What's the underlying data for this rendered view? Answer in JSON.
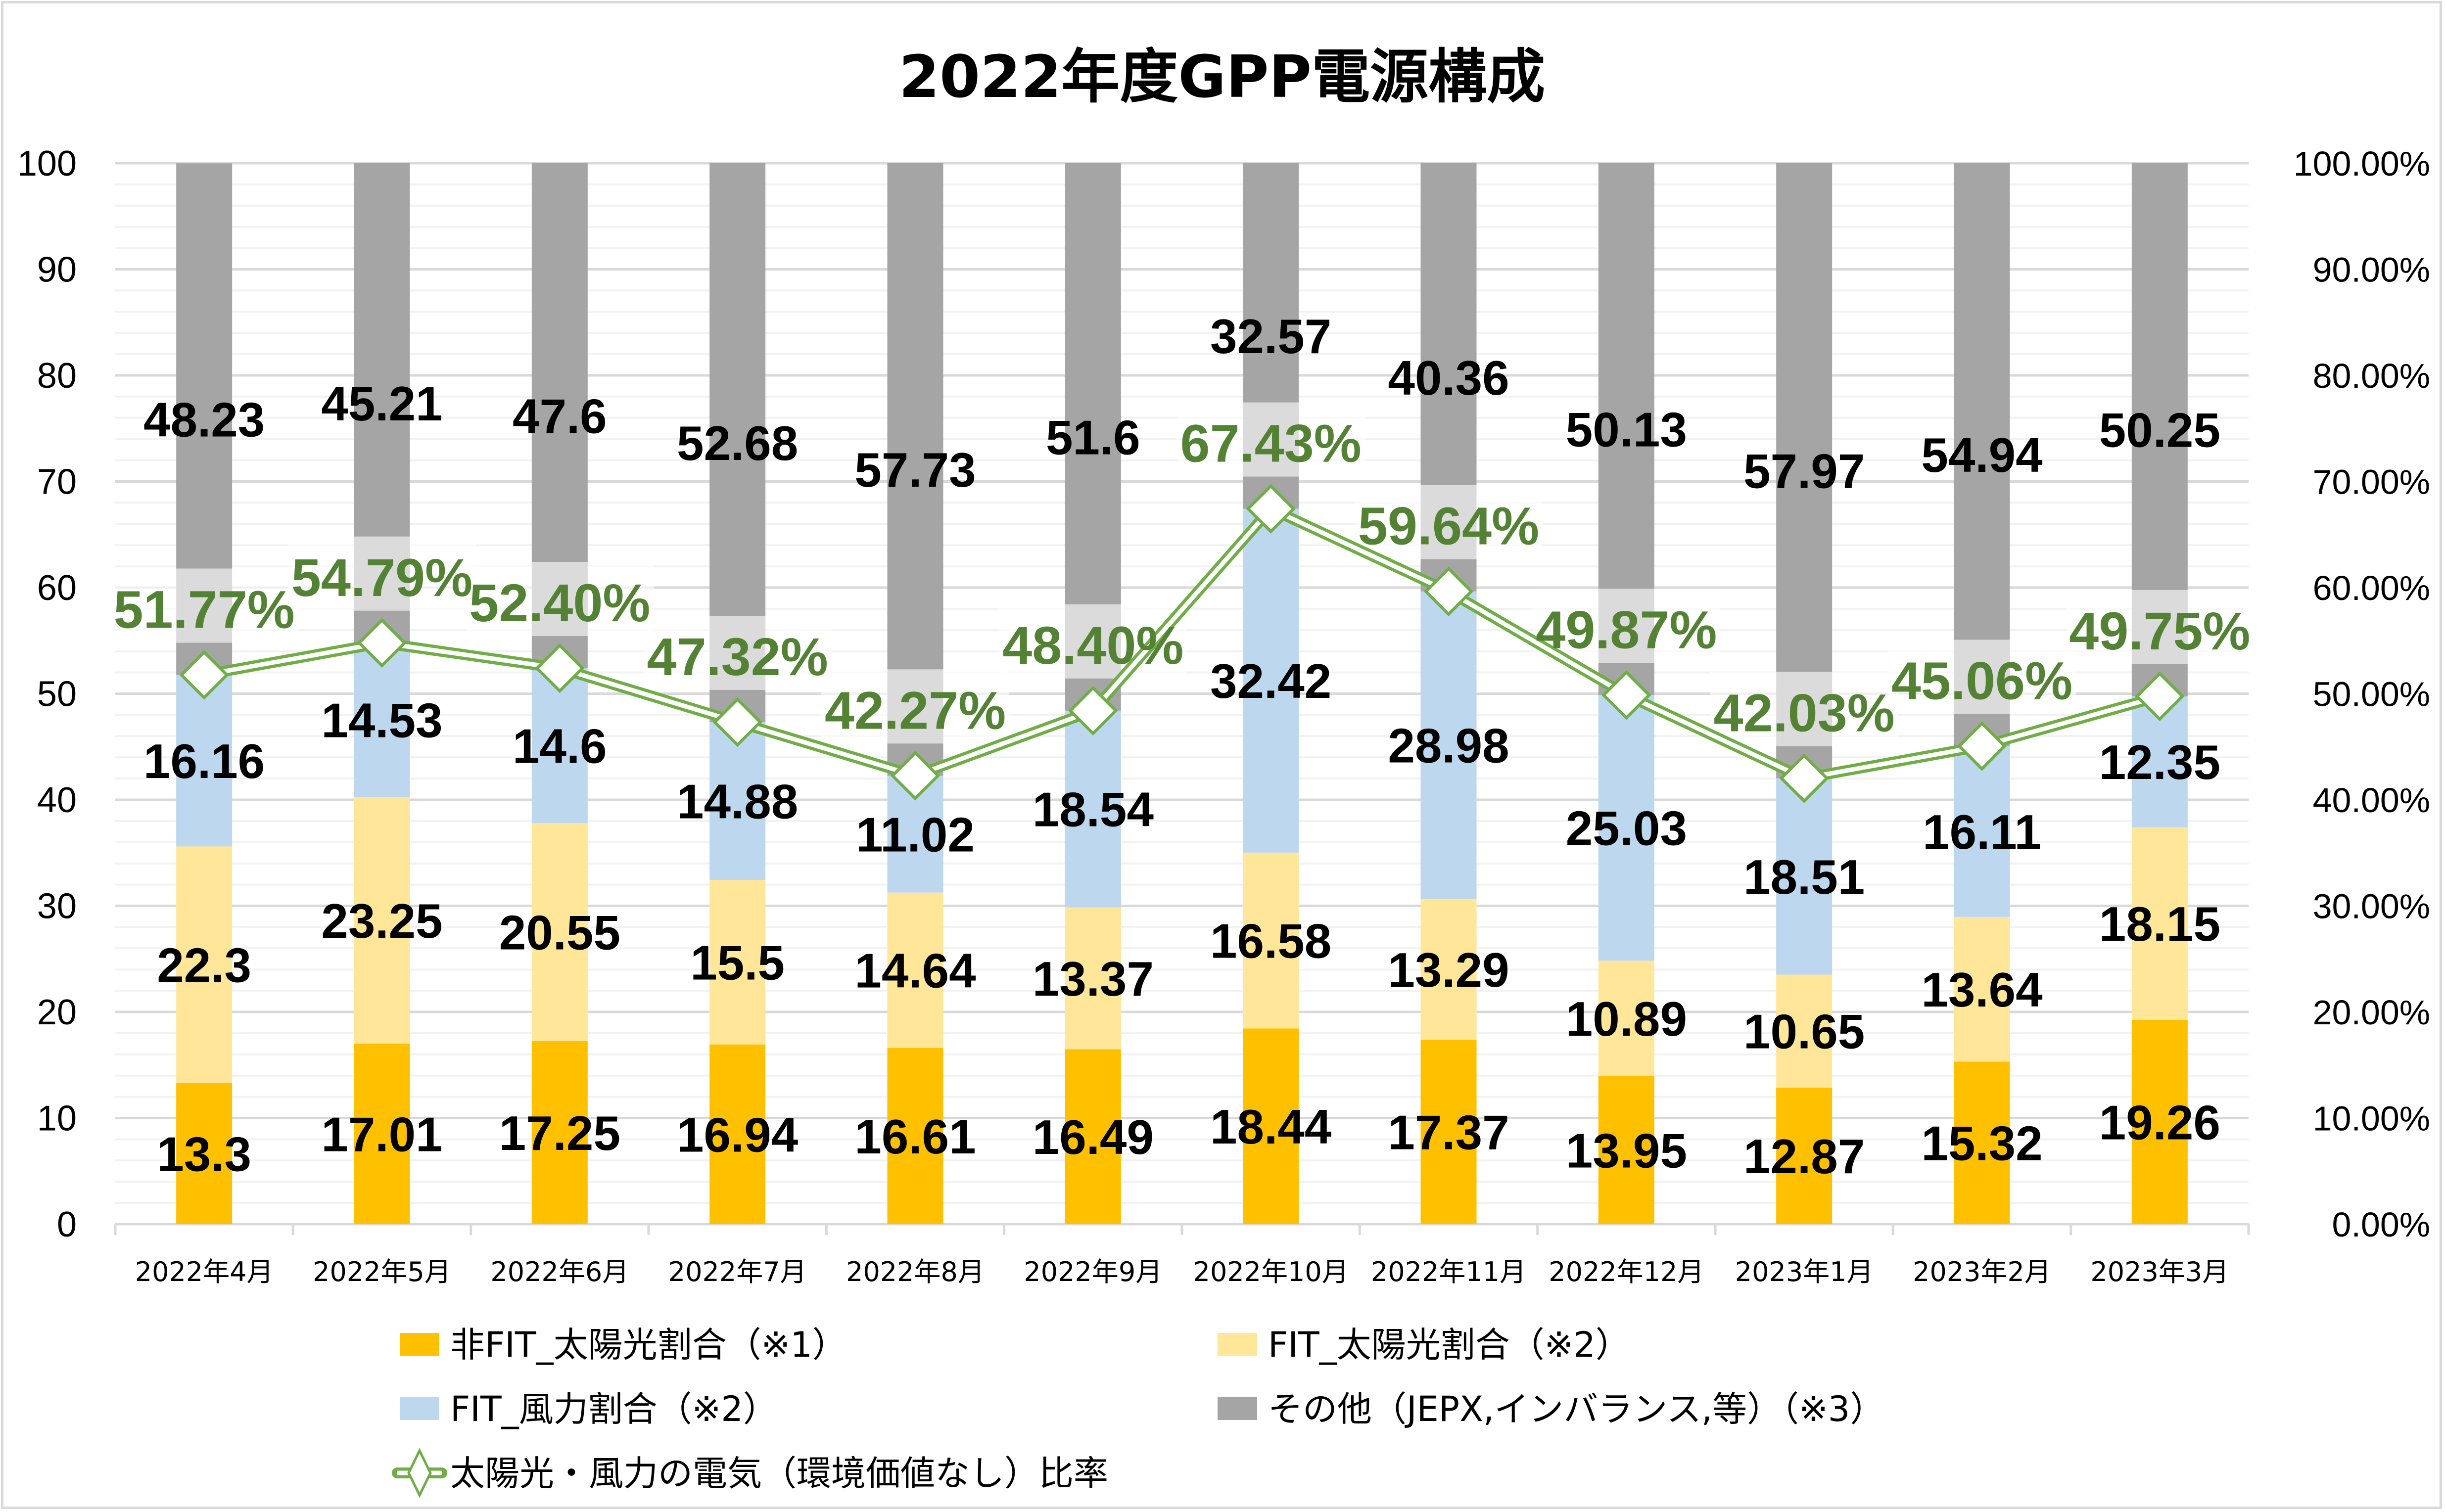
{
  "chart_data": {
    "type": "bar",
    "subtype": "stacked-bar-with-line-secondary-axis",
    "title": "2022年度GPP電源構成",
    "categories": [
      "2022年4月",
      "2022年5月",
      "2022年6月",
      "2022年7月",
      "2022年8月",
      "2022年9月",
      "2022年10月",
      "2022年11月",
      "2022年12月",
      "2023年1月",
      "2023年2月",
      "2023年3月"
    ],
    "series": [
      {
        "name": "非FIT_太陽光割合（※1）",
        "type": "bar",
        "color": "#FFC000",
        "values": [
          13.3,
          17.01,
          17.25,
          16.94,
          16.61,
          16.49,
          18.44,
          17.37,
          13.95,
          12.87,
          15.32,
          19.26
        ]
      },
      {
        "name": "FIT_太陽光割合（※2）",
        "type": "bar",
        "color": "#FFE699",
        "values": [
          22.3,
          23.25,
          20.55,
          15.5,
          14.64,
          13.37,
          16.58,
          13.29,
          10.89,
          10.65,
          13.64,
          18.15
        ]
      },
      {
        "name": "FIT_風力割合（※2）",
        "type": "bar",
        "color": "#BDD7EE",
        "values": [
          16.16,
          14.53,
          14.6,
          14.88,
          11.02,
          18.54,
          32.42,
          28.98,
          25.03,
          18.51,
          16.11,
          12.35
        ]
      },
      {
        "name": "その他（JEPX,インバランス,等）（※3）",
        "type": "bar",
        "color": "#A5A5A5",
        "values": [
          48.23,
          45.21,
          47.6,
          52.68,
          57.73,
          51.6,
          32.57,
          40.36,
          50.13,
          57.97,
          54.94,
          50.25
        ]
      },
      {
        "name": "太陽光・風力の電気（環境価値なし）比率",
        "type": "line",
        "axis": "secondary",
        "color": "#70AD47",
        "label_color": "#548235",
        "values": [
          51.77,
          54.79,
          52.4,
          47.32,
          42.27,
          48.4,
          67.43,
          59.64,
          49.87,
          42.03,
          45.06,
          49.75
        ],
        "labels": [
          "51.77%",
          "54.79%",
          "52.40%",
          "47.32%",
          "42.27%",
          "48.40%",
          "67.43%",
          "59.64%",
          "49.87%",
          "42.03%",
          "45.06%",
          "49.75%"
        ]
      }
    ],
    "ylim": [
      0,
      100
    ],
    "yticks": [
      "0",
      "10",
      "20",
      "30",
      "40",
      "50",
      "60",
      "70",
      "80",
      "90",
      "100"
    ],
    "y2lim": [
      0,
      100
    ],
    "y2ticks": [
      "0.00%",
      "10.00%",
      "20.00%",
      "30.00%",
      "40.00%",
      "50.00%",
      "60.00%",
      "70.00%",
      "80.00%",
      "90.00%",
      "100.00%"
    ],
    "xlabel": "",
    "ylabel": "",
    "grid": true,
    "legend_position": "bottom"
  },
  "legend": {
    "items": [
      {
        "label": "非FIT_太陽光割合（※1）",
        "marker": "square",
        "color": "#FFC000"
      },
      {
        "label": "FIT_太陽光割合（※2）",
        "marker": "square",
        "color": "#FFE699"
      },
      {
        "label": "FIT_風力割合（※2）",
        "marker": "square",
        "color": "#BDD7EE"
      },
      {
        "label": "その他（JEPX,インバランス,等）（※3）",
        "marker": "square",
        "color": "#A5A5A5"
      },
      {
        "label": "太陽光・風力の電気（環境価値なし）比率",
        "marker": "line-diamond",
        "color": "#70AD47"
      }
    ]
  }
}
